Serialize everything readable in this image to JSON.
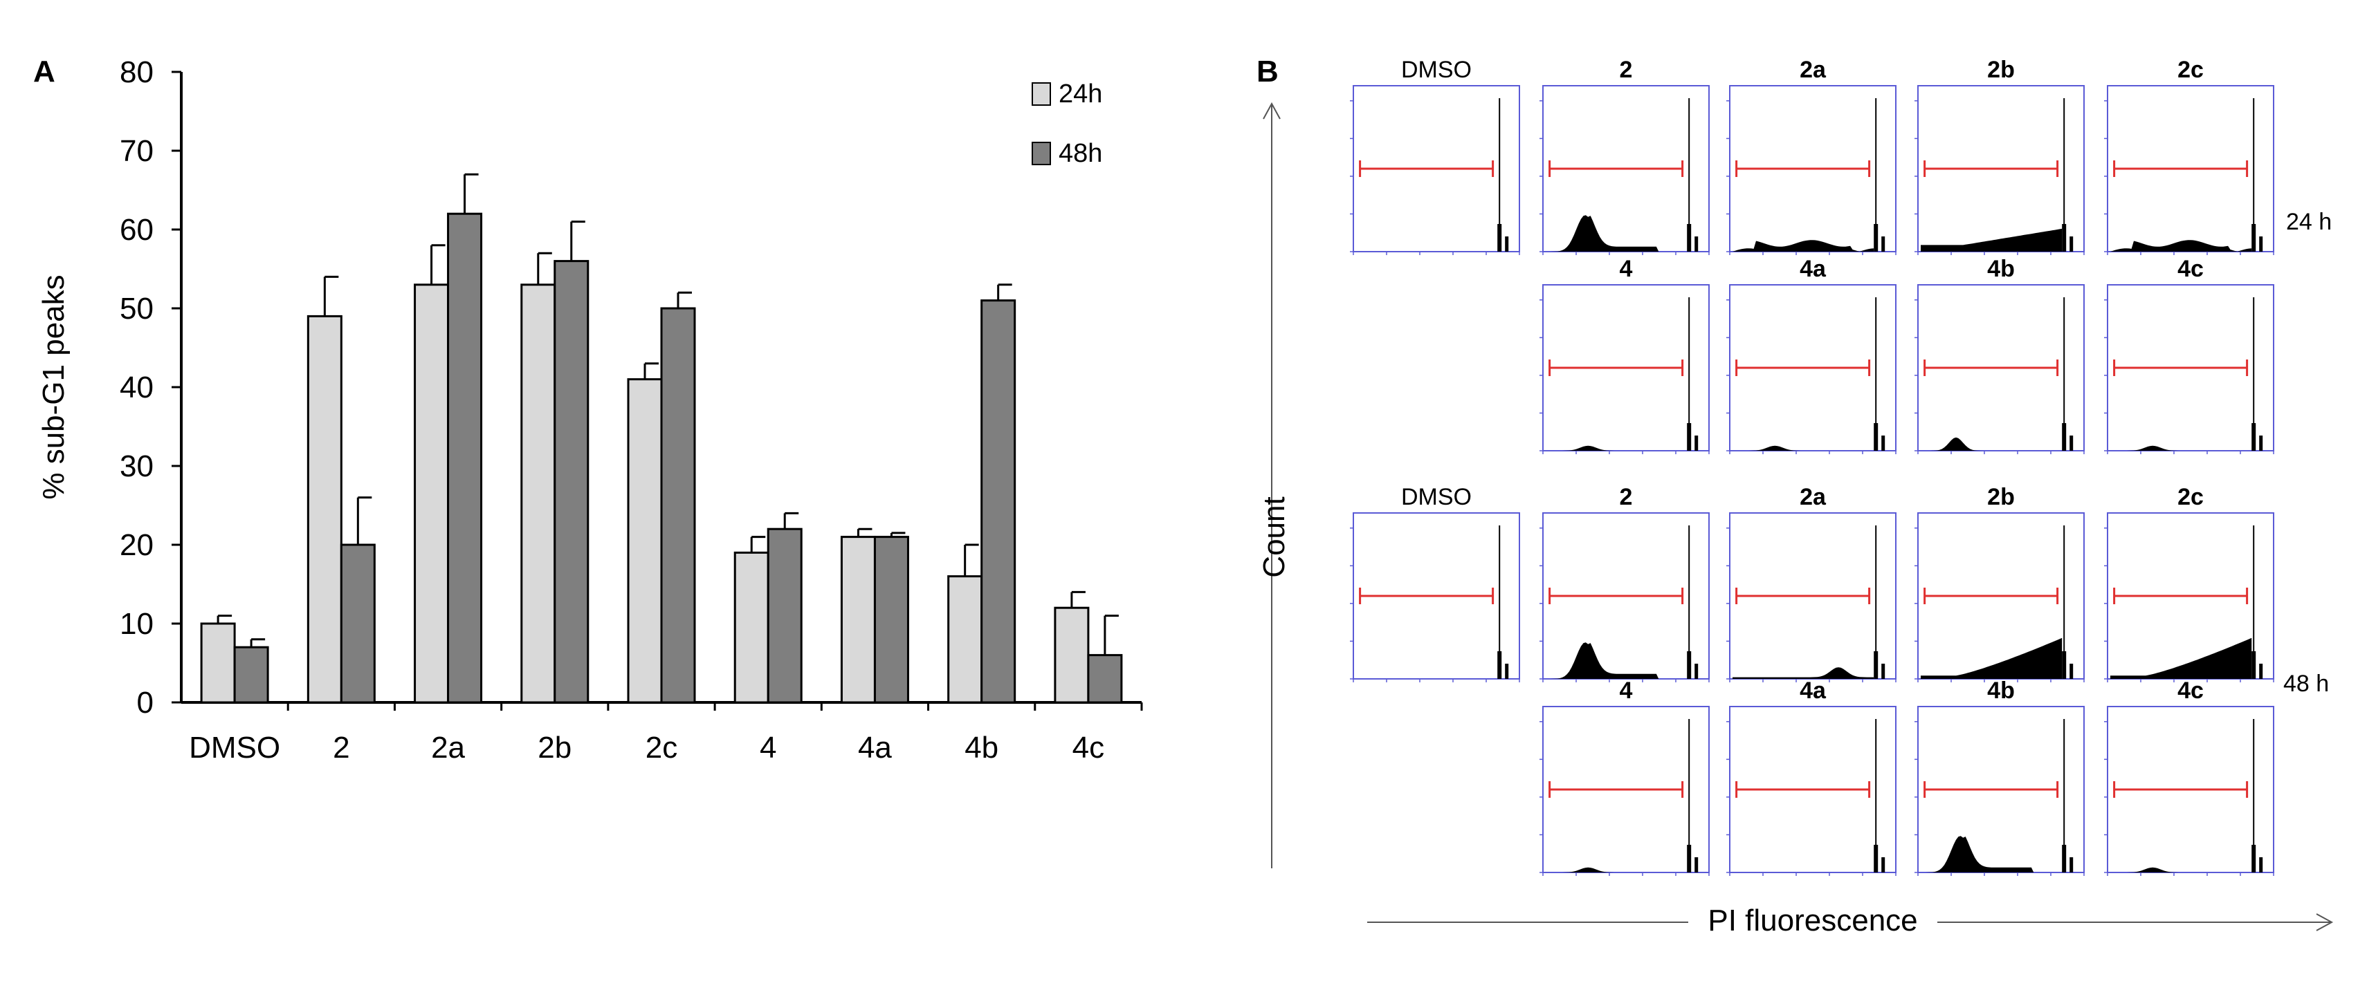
{
  "figure": {
    "panel_a_letter": "A",
    "panel_b_letter": "B"
  },
  "chart_data": [
    {
      "type": "bar",
      "panel": "A",
      "ylabel": "% sub-G1 peaks",
      "xlabel": "",
      "ylim": [
        0,
        80
      ],
      "yticks": [
        0,
        10,
        20,
        30,
        40,
        50,
        60,
        70,
        80
      ],
      "categories": [
        "DMSO",
        "2",
        "2a",
        "2b",
        "2c",
        "4",
        "4a",
        "4b",
        "4c"
      ],
      "series": [
        {
          "name": "24h",
          "color": "#d9d9d9",
          "values": [
            10,
            49,
            53,
            53,
            41,
            19,
            21,
            16,
            12
          ],
          "errors": [
            1,
            5,
            5,
            4,
            2,
            2,
            1,
            4,
            2
          ]
        },
        {
          "name": "48h",
          "color": "#7f7f7f",
          "values": [
            7,
            20,
            62,
            56,
            50,
            22,
            21,
            51,
            6
          ],
          "errors": [
            1,
            6,
            5,
            5,
            2,
            2,
            0.5,
            2,
            5
          ]
        }
      ],
      "legend_position": "top-right",
      "grid": false
    },
    {
      "type": "histogram-grid",
      "panel": "B",
      "xlabel": "PI fluorescence",
      "ylabel": "Count",
      "groups": [
        {
          "time": "24 h",
          "rows": [
            [
              "DMSO",
              "2",
              "2a",
              "2b",
              "2c"
            ],
            [
              "4",
              "4a",
              "4b",
              "4c"
            ]
          ]
        },
        {
          "time": "48 h",
          "rows": [
            [
              "DMSO",
              "2",
              "2a",
              "2b",
              "2c"
            ],
            [
              "4",
              "4a",
              "4b",
              "4c"
            ]
          ]
        }
      ],
      "histogram_profiles": {
        "24 h": {
          "DMSO": "low",
          "2": "hump-left",
          "2a": "flat-mid",
          "2b": "rising",
          "2c": "flat-mid",
          "4": "tiny",
          "4a": "tiny",
          "4b": "hump-left-small",
          "4c": "tiny"
        },
        "48 h": {
          "DMSO": "low",
          "2": "hump-left",
          "2a": "rise-right",
          "2b": "big-rise",
          "2c": "big-rise",
          "4": "tiny",
          "4a": "none",
          "4b": "hump-left",
          "4c": "tiny"
        }
      },
      "gate_color": "#e03030",
      "frame_color": "#5a5ad6",
      "histogram_color": "#000000"
    }
  ]
}
